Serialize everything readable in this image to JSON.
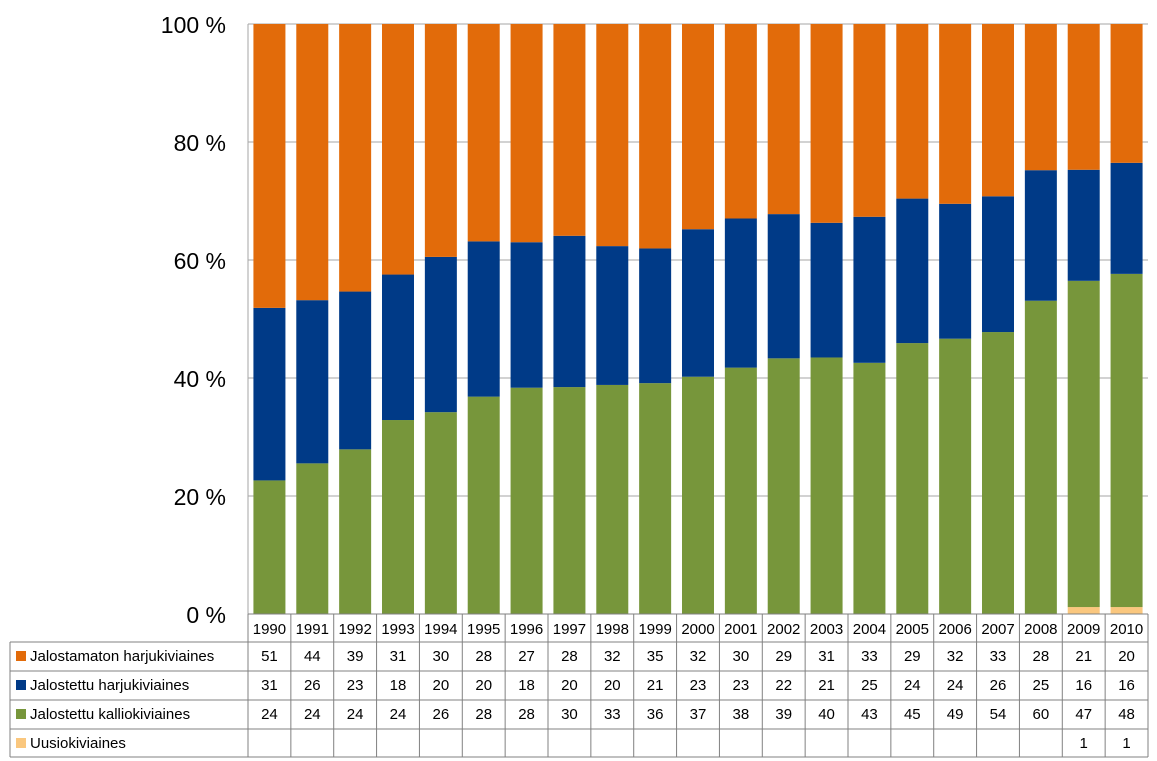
{
  "chart_data": {
    "type": "bar",
    "stacked": true,
    "normalized": true,
    "categories": [
      "1990",
      "1991",
      "1992",
      "1993",
      "1994",
      "1995",
      "1996",
      "1997",
      "1998",
      "1999",
      "2000",
      "2001",
      "2002",
      "2003",
      "2004",
      "2005",
      "2006",
      "2007",
      "2008",
      "2009",
      "2010"
    ],
    "y_tick_labels": [
      "0 %",
      "20 %",
      "40 %",
      "60 %",
      "80 %",
      "100 %"
    ],
    "ylim": [
      0,
      100
    ],
    "grid": true,
    "legend": "data-table",
    "series": [
      {
        "name": "Jalostamaton harjukiviaines",
        "color": "#E26B0A",
        "values": [
          51,
          44,
          39,
          31,
          30,
          28,
          27,
          28,
          32,
          35,
          32,
          30,
          29,
          31,
          33,
          29,
          32,
          33,
          28,
          21,
          20
        ]
      },
      {
        "name": "Jalostettu harjukiviaines",
        "color": "#003A87",
        "values": [
          31,
          26,
          23,
          18,
          20,
          20,
          18,
          20,
          20,
          21,
          23,
          23,
          22,
          21,
          25,
          24,
          24,
          26,
          25,
          16,
          16
        ]
      },
      {
        "name": "Jalostettu kalliokiviaines",
        "color": "#77963B",
        "values": [
          24,
          24,
          24,
          24,
          26,
          28,
          28,
          30,
          33,
          36,
          37,
          38,
          39,
          40,
          43,
          45,
          49,
          54,
          60,
          47,
          48
        ]
      },
      {
        "name": "Uusiokiviaines",
        "color": "#FAC77E",
        "values": [
          null,
          null,
          null,
          null,
          null,
          null,
          null,
          null,
          null,
          null,
          null,
          null,
          null,
          null,
          null,
          null,
          null,
          null,
          null,
          1,
          1
        ]
      }
    ]
  }
}
